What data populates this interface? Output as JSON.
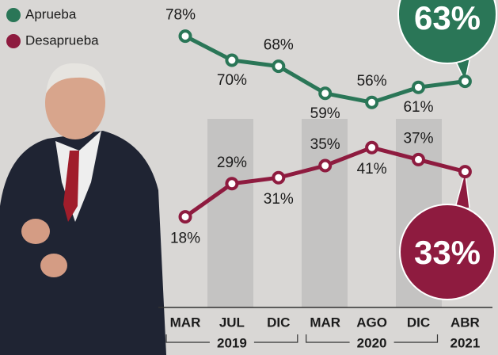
{
  "chart_data": {
    "type": "line",
    "categories": [
      "MAR",
      "JUL",
      "DIC",
      "MAR",
      "AGO",
      "DIC",
      "ABR"
    ],
    "x_groups": [
      "2019",
      "2020",
      "2021"
    ],
    "series": [
      {
        "name": "Aprueba",
        "color": "#2a7657",
        "values": [
          78,
          70,
          68,
          59,
          56,
          61,
          63
        ],
        "value_labels": [
          "78%",
          "70%",
          "68%",
          "59%",
          "56%",
          "61%",
          "63%"
        ]
      },
      {
        "name": "Desaprueba",
        "color": "#8e1b3f",
        "values": [
          18,
          29,
          31,
          35,
          41,
          37,
          33
        ],
        "value_labels": [
          "18%",
          "29%",
          "31%",
          "35%",
          "41%",
          "37%",
          "33%"
        ]
      }
    ]
  }
}
